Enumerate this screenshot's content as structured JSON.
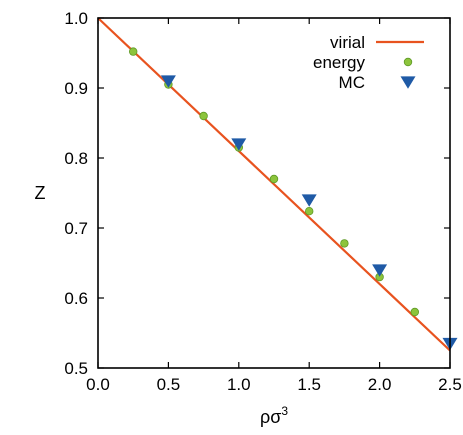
{
  "chart_data": {
    "type": "line",
    "xlabel": "ρσ",
    "xlabel_superscript": "3",
    "ylabel": "Z",
    "xlim": [
      0.0,
      2.5
    ],
    "ylim": [
      0.5,
      1.0
    ],
    "x_ticks": [
      "0.0",
      "0.5",
      "1.0",
      "1.5",
      "2.0",
      "2.5"
    ],
    "y_ticks": [
      "0.5",
      "0.6",
      "0.7",
      "0.8",
      "0.9",
      "1.0"
    ],
    "grid": false,
    "legend_position": "top-right",
    "series": [
      {
        "name": "virial",
        "kind": "line",
        "color": "#e8531f",
        "x": [
          0.0,
          2.5
        ],
        "y": [
          1.0,
          0.525
        ]
      },
      {
        "name": "energy",
        "kind": "scatter-circle",
        "color": "#8cc43c",
        "x": [
          0.25,
          0.5,
          0.75,
          1.0,
          1.25,
          1.5,
          1.75,
          2.0,
          2.25
        ],
        "y": [
          0.952,
          0.905,
          0.86,
          0.815,
          0.77,
          0.724,
          0.678,
          0.63,
          0.58
        ]
      },
      {
        "name": "MC",
        "kind": "scatter-triangle",
        "color": "#1f5aa6",
        "x": [
          0.5,
          1.0,
          1.5,
          2.0,
          2.5
        ],
        "y": [
          0.91,
          0.82,
          0.74,
          0.64,
          0.535
        ]
      }
    ]
  }
}
